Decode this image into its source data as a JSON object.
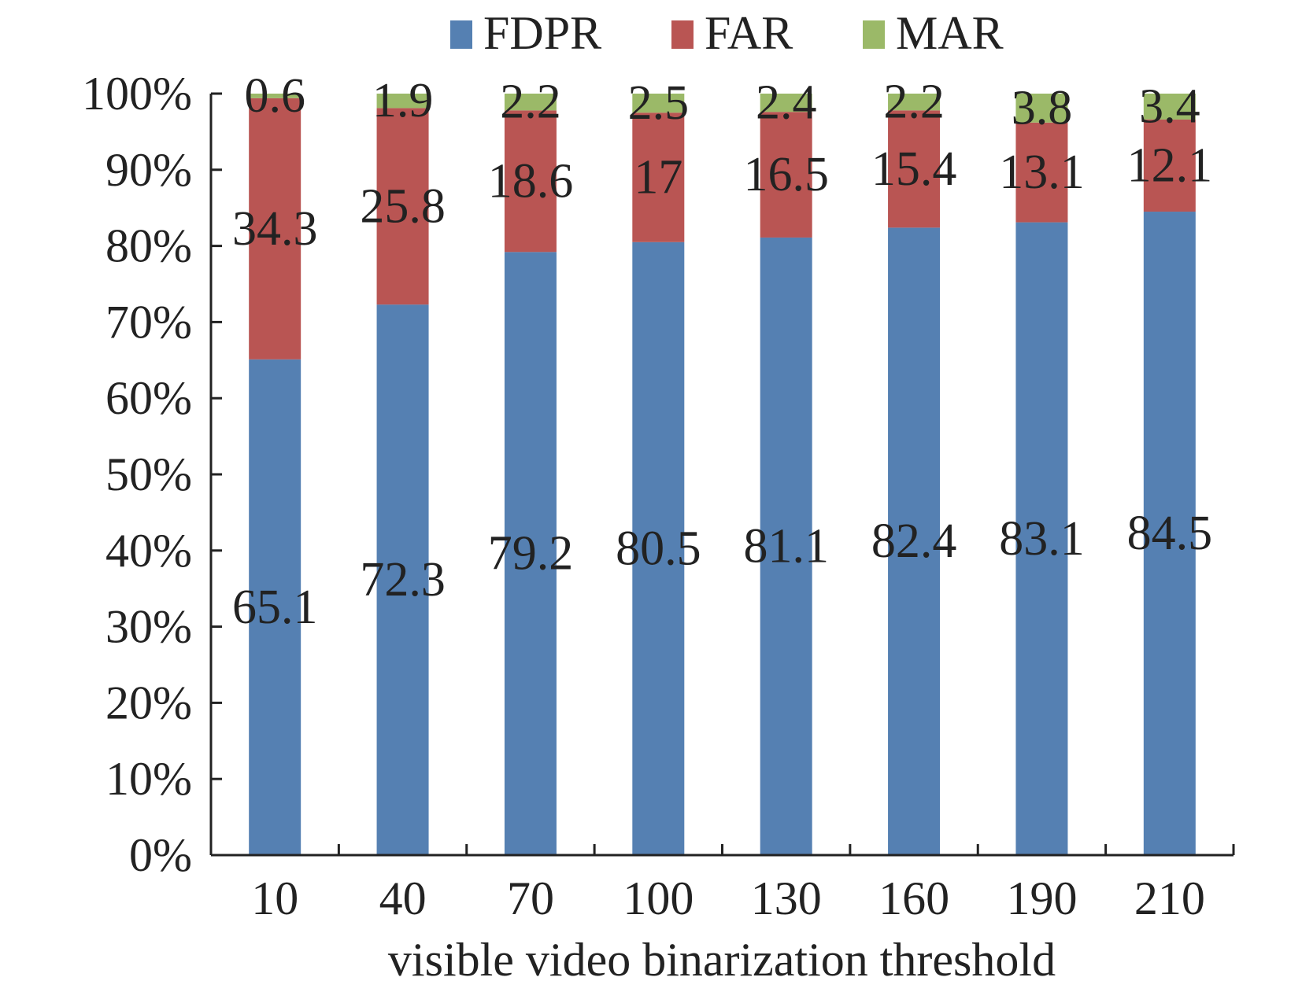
{
  "chart_data": {
    "type": "bar",
    "stacked": true,
    "title": "",
    "xlabel": "visible video binarization threshold",
    "ylabel": "",
    "categories": [
      "10",
      "40",
      "70",
      "100",
      "130",
      "160",
      "190",
      "210"
    ],
    "series": [
      {
        "name": "FDPR",
        "color": "#5580b2",
        "values": [
          65.1,
          72.3,
          79.2,
          80.5,
          81.1,
          82.4,
          83.1,
          84.5
        ],
        "labels": [
          "65.1",
          "72.3",
          "79.2",
          "80.5",
          "81.1",
          "82.4",
          "83.1",
          "84.5"
        ]
      },
      {
        "name": "FAR",
        "color": "#b95553",
        "values": [
          34.3,
          25.8,
          18.6,
          17,
          16.5,
          15.4,
          13.1,
          12.1
        ],
        "labels": [
          "34.3",
          "25.8",
          "18.6",
          "17",
          "16.5",
          "15.4",
          "13.1",
          "12.1"
        ]
      },
      {
        "name": "MAR",
        "color": "#9bb968",
        "values": [
          0.6,
          1.9,
          2.2,
          2.5,
          2.4,
          2.2,
          3.8,
          3.4
        ],
        "labels": [
          "0.6",
          "1.9",
          "2.2",
          "2.5",
          "2.4",
          "2.2",
          "3.8",
          "3.4"
        ]
      }
    ],
    "ylim": [
      0,
      100
    ],
    "yticks": [
      "0%",
      "10%",
      "20%",
      "30%",
      "40%",
      "50%",
      "60%",
      "70%",
      "80%",
      "90%",
      "100%"
    ],
    "grid": false,
    "legend": "top-center"
  }
}
